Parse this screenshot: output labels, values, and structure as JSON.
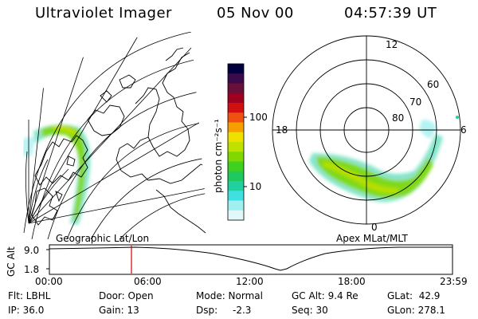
{
  "header": {
    "instrument": "Ultraviolet Imager",
    "date": "05 Nov 00",
    "time": "04:57:39 UT"
  },
  "colorbar": {
    "unit_label": "photon cm⁻²s⁻¹",
    "ticks": [
      "100",
      "10"
    ],
    "colors": [
      "#000040",
      "#3a0a4a",
      "#6a0f3a",
      "#a00020",
      "#d01010",
      "#f05010",
      "#f5a000",
      "#f0e000",
      "#c0e000",
      "#80d800",
      "#40d020",
      "#20c860",
      "#20d0a0",
      "#40e0e0",
      "#a0f0f0",
      "#e0f8f8"
    ]
  },
  "geo_panel": {
    "label": "Geographic Lat/Lon"
  },
  "polar_panel": {
    "label": "Apex MLat/MLT",
    "mlt_labels": {
      "top": "12",
      "left": "18",
      "right": "6",
      "bottom": "0"
    },
    "lat_labels": [
      "60",
      "70",
      "80"
    ]
  },
  "timeline": {
    "ylabel": "GC Alt",
    "yticks": [
      "9.0",
      "1.8"
    ],
    "xticks": [
      "00:00",
      "06:00",
      "12:00",
      "18:00",
      "23:59"
    ],
    "marker_color": "#cc0000"
  },
  "footer": {
    "flt": "Flt: LBHL",
    "ip": "IP: 36.0",
    "door": "Door: Open",
    "gain": "Gain: 13",
    "mode": "Mode: Normal",
    "dsp_label": "Dsp:",
    "dsp_value": "-2.3",
    "gcalt": "GC Alt: 9.4 Re",
    "seq": "Seq: 30",
    "glat": "GLat:  42.9",
    "glon": "GLon: 278.1"
  }
}
